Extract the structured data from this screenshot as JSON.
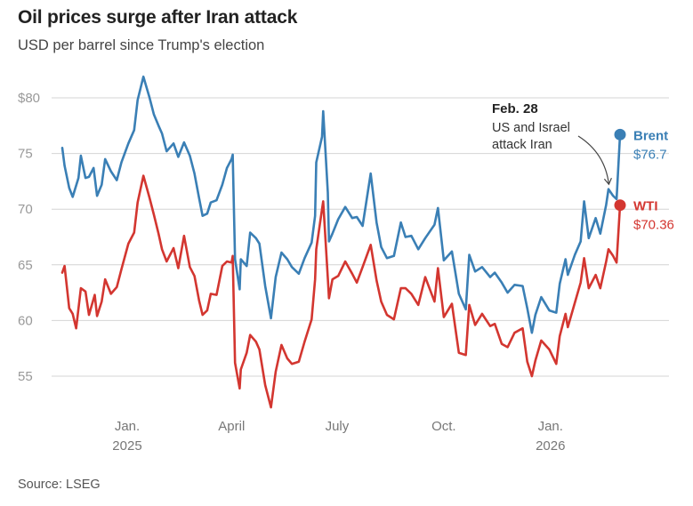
{
  "title": "Oil prices surge after Iran attack",
  "subtitle": "USD per barrel since Trump's election",
  "source": "Source: LSEG",
  "colors": {
    "brent": "#3a7fb5",
    "wti": "#d33630",
    "grid": "#d4d4d4"
  },
  "chart_data": {
    "type": "line",
    "title": "Oil prices surge after Iran attack",
    "subtitle": "USD per barrel since Trump's election",
    "xlabel": "",
    "ylabel": "",
    "ylim": [
      52,
      82
    ],
    "grid": true,
    "y_ticks": [
      "$80",
      "75",
      "70",
      "65",
      "60",
      "55"
    ],
    "x_ticks": [
      {
        "label": "Jan.",
        "sublabel": "2025",
        "date": "2025-01-01"
      },
      {
        "label": "April",
        "sublabel": "",
        "date": "2025-04-01"
      },
      {
        "label": "July",
        "sublabel": "",
        "date": "2025-07-01"
      },
      {
        "label": "Oct.",
        "sublabel": "",
        "date": "2025-10-01"
      },
      {
        "label": "Jan.",
        "sublabel": "2026",
        "date": "2026-01-01"
      }
    ],
    "annotation": {
      "date": "2026-02-28",
      "title": "Feb. 28",
      "lines": [
        "US and Israel",
        "attack Iran"
      ]
    },
    "series": [
      {
        "name": "Brent",
        "end_label": "$76.7",
        "points": [
          [
            "2024-11-06",
            75.5
          ],
          [
            "2024-11-08",
            73.9
          ],
          [
            "2024-11-12",
            71.9
          ],
          [
            "2024-11-15",
            71.1
          ],
          [
            "2024-11-20",
            72.8
          ],
          [
            "2024-11-22",
            74.8
          ],
          [
            "2024-11-26",
            72.8
          ],
          [
            "2024-11-29",
            72.9
          ],
          [
            "2024-12-03",
            73.7
          ],
          [
            "2024-12-06",
            71.2
          ],
          [
            "2024-12-10",
            72.2
          ],
          [
            "2024-12-13",
            74.5
          ],
          [
            "2024-12-18",
            73.4
          ],
          [
            "2024-12-23",
            72.6
          ],
          [
            "2024-12-27",
            74.2
          ],
          [
            "2025-01-02",
            75.9
          ],
          [
            "2025-01-07",
            77.1
          ],
          [
            "2025-01-10",
            79.8
          ],
          [
            "2025-01-15",
            81.9
          ],
          [
            "2025-01-20",
            80.1
          ],
          [
            "2025-01-24",
            78.5
          ],
          [
            "2025-01-28",
            77.5
          ],
          [
            "2025-01-31",
            76.8
          ],
          [
            "2025-02-04",
            75.2
          ],
          [
            "2025-02-10",
            75.9
          ],
          [
            "2025-02-14",
            74.7
          ],
          [
            "2025-02-19",
            76.0
          ],
          [
            "2025-02-24",
            74.8
          ],
          [
            "2025-02-28",
            73.2
          ],
          [
            "2025-03-04",
            71.0
          ],
          [
            "2025-03-07",
            69.4
          ],
          [
            "2025-03-11",
            69.6
          ],
          [
            "2025-03-14",
            70.6
          ],
          [
            "2025-03-19",
            70.8
          ],
          [
            "2025-03-24",
            72.2
          ],
          [
            "2025-03-28",
            73.7
          ],
          [
            "2025-04-01",
            74.5
          ],
          [
            "2025-04-02",
            74.9
          ],
          [
            "2025-04-04",
            65.5
          ],
          [
            "2025-04-08",
            62.8
          ],
          [
            "2025-04-09",
            65.5
          ],
          [
            "2025-04-14",
            64.9
          ],
          [
            "2025-04-17",
            67.9
          ],
          [
            "2025-04-22",
            67.4
          ],
          [
            "2025-04-25",
            66.9
          ],
          [
            "2025-04-30",
            63.1
          ],
          [
            "2025-05-05",
            60.2
          ],
          [
            "2025-05-09",
            63.9
          ],
          [
            "2025-05-14",
            66.1
          ],
          [
            "2025-05-19",
            65.5
          ],
          [
            "2025-05-23",
            64.8
          ],
          [
            "2025-05-29",
            64.2
          ],
          [
            "2025-06-03",
            65.6
          ],
          [
            "2025-06-09",
            67.0
          ],
          [
            "2025-06-12",
            69.4
          ],
          [
            "2025-06-13",
            74.2
          ],
          [
            "2025-06-18",
            76.5
          ],
          [
            "2025-06-19",
            78.8
          ],
          [
            "2025-06-23",
            71.5
          ],
          [
            "2025-06-24",
            67.1
          ],
          [
            "2025-06-27",
            67.8
          ],
          [
            "2025-07-02",
            69.1
          ],
          [
            "2025-07-08",
            70.2
          ],
          [
            "2025-07-14",
            69.2
          ],
          [
            "2025-07-18",
            69.3
          ],
          [
            "2025-07-23",
            68.5
          ],
          [
            "2025-07-30",
            73.2
          ],
          [
            "2025-08-04",
            68.8
          ],
          [
            "2025-08-08",
            66.6
          ],
          [
            "2025-08-13",
            65.6
          ],
          [
            "2025-08-19",
            65.8
          ],
          [
            "2025-08-25",
            68.8
          ],
          [
            "2025-08-29",
            67.5
          ],
          [
            "2025-09-03",
            67.6
          ],
          [
            "2025-09-09",
            66.4
          ],
          [
            "2025-09-15",
            67.4
          ],
          [
            "2025-09-23",
            68.6
          ],
          [
            "2025-09-26",
            70.1
          ],
          [
            "2025-10-01",
            65.4
          ],
          [
            "2025-10-08",
            66.2
          ],
          [
            "2025-10-14",
            62.4
          ],
          [
            "2025-10-20",
            61.0
          ],
          [
            "2025-10-23",
            65.9
          ],
          [
            "2025-10-28",
            64.4
          ],
          [
            "2025-11-03",
            64.8
          ],
          [
            "2025-11-10",
            63.9
          ],
          [
            "2025-11-14",
            64.3
          ],
          [
            "2025-11-20",
            63.4
          ],
          [
            "2025-11-25",
            62.5
          ],
          [
            "2025-12-01",
            63.2
          ],
          [
            "2025-12-08",
            63.1
          ],
          [
            "2025-12-12",
            61.1
          ],
          [
            "2025-12-16",
            58.9
          ],
          [
            "2025-12-19",
            60.5
          ],
          [
            "2025-12-24",
            62.1
          ],
          [
            "2025-12-31",
            60.9
          ],
          [
            "2026-01-06",
            60.7
          ],
          [
            "2026-01-09",
            63.3
          ],
          [
            "2026-01-14",
            65.5
          ],
          [
            "2026-01-16",
            64.1
          ],
          [
            "2026-01-22",
            65.9
          ],
          [
            "2026-01-27",
            67.1
          ],
          [
            "2026-01-30",
            70.7
          ],
          [
            "2026-02-03",
            67.4
          ],
          [
            "2026-02-09",
            69.2
          ],
          [
            "2026-02-13",
            67.8
          ],
          [
            "2026-02-18",
            70.4
          ],
          [
            "2026-02-20",
            71.8
          ],
          [
            "2026-02-24",
            71.2
          ],
          [
            "2026-02-27",
            70.9
          ],
          [
            "2026-03-02",
            76.7
          ]
        ]
      },
      {
        "name": "WTI",
        "end_label": "$70.36",
        "points": [
          [
            "2024-11-06",
            64.3
          ],
          [
            "2024-11-08",
            64.9
          ],
          [
            "2024-11-12",
            61.1
          ],
          [
            "2024-11-15",
            60.6
          ],
          [
            "2024-11-18",
            59.3
          ],
          [
            "2024-11-22",
            62.9
          ],
          [
            "2024-11-26",
            62.6
          ],
          [
            "2024-11-29",
            60.5
          ],
          [
            "2024-12-04",
            62.3
          ],
          [
            "2024-12-06",
            60.4
          ],
          [
            "2024-12-10",
            61.7
          ],
          [
            "2024-12-13",
            63.7
          ],
          [
            "2024-12-18",
            62.4
          ],
          [
            "2024-12-23",
            63.0
          ],
          [
            "2024-12-27",
            64.6
          ],
          [
            "2025-01-02",
            66.9
          ],
          [
            "2025-01-07",
            67.9
          ],
          [
            "2025-01-10",
            70.6
          ],
          [
            "2025-01-15",
            73.0
          ],
          [
            "2025-01-20",
            71.1
          ],
          [
            "2025-01-24",
            69.5
          ],
          [
            "2025-01-28",
            67.8
          ],
          [
            "2025-01-31",
            66.4
          ],
          [
            "2025-02-04",
            65.3
          ],
          [
            "2025-02-10",
            66.5
          ],
          [
            "2025-02-14",
            64.7
          ],
          [
            "2025-02-19",
            67.6
          ],
          [
            "2025-02-24",
            64.8
          ],
          [
            "2025-02-28",
            64.0
          ],
          [
            "2025-03-04",
            61.8
          ],
          [
            "2025-03-07",
            60.5
          ],
          [
            "2025-03-11",
            60.9
          ],
          [
            "2025-03-14",
            62.4
          ],
          [
            "2025-03-19",
            62.3
          ],
          [
            "2025-03-24",
            64.9
          ],
          [
            "2025-03-28",
            65.3
          ],
          [
            "2025-04-01",
            65.2
          ],
          [
            "2025-04-02",
            65.8
          ],
          [
            "2025-04-04",
            56.2
          ],
          [
            "2025-04-08",
            53.9
          ],
          [
            "2025-04-09",
            55.6
          ],
          [
            "2025-04-14",
            57.1
          ],
          [
            "2025-04-17",
            58.7
          ],
          [
            "2025-04-22",
            58.1
          ],
          [
            "2025-04-25",
            57.4
          ],
          [
            "2025-04-30",
            54.2
          ],
          [
            "2025-05-05",
            52.2
          ],
          [
            "2025-05-09",
            55.4
          ],
          [
            "2025-05-14",
            57.8
          ],
          [
            "2025-05-19",
            56.6
          ],
          [
            "2025-05-23",
            56.1
          ],
          [
            "2025-05-29",
            56.3
          ],
          [
            "2025-06-03",
            58.1
          ],
          [
            "2025-06-09",
            60.1
          ],
          [
            "2025-06-12",
            63.7
          ],
          [
            "2025-06-13",
            66.4
          ],
          [
            "2025-06-18",
            70.0
          ],
          [
            "2025-06-19",
            70.7
          ],
          [
            "2025-06-23",
            63.8
          ],
          [
            "2025-06-24",
            62.0
          ],
          [
            "2025-06-27",
            63.7
          ],
          [
            "2025-07-02",
            64.0
          ],
          [
            "2025-07-08",
            65.3
          ],
          [
            "2025-07-14",
            64.2
          ],
          [
            "2025-07-18",
            63.4
          ],
          [
            "2025-07-23",
            64.8
          ],
          [
            "2025-07-30",
            66.8
          ],
          [
            "2025-08-04",
            63.6
          ],
          [
            "2025-08-08",
            61.7
          ],
          [
            "2025-08-13",
            60.5
          ],
          [
            "2025-08-19",
            60.1
          ],
          [
            "2025-08-25",
            62.9
          ],
          [
            "2025-08-29",
            62.9
          ],
          [
            "2025-09-03",
            62.4
          ],
          [
            "2025-09-09",
            61.4
          ],
          [
            "2025-09-15",
            63.9
          ],
          [
            "2025-09-23",
            61.7
          ],
          [
            "2025-09-26",
            64.7
          ],
          [
            "2025-10-01",
            60.3
          ],
          [
            "2025-10-08",
            61.5
          ],
          [
            "2025-10-14",
            57.1
          ],
          [
            "2025-10-20",
            56.9
          ],
          [
            "2025-10-23",
            61.4
          ],
          [
            "2025-10-28",
            59.6
          ],
          [
            "2025-11-03",
            60.6
          ],
          [
            "2025-11-10",
            59.5
          ],
          [
            "2025-11-14",
            59.7
          ],
          [
            "2025-11-20",
            57.9
          ],
          [
            "2025-11-25",
            57.6
          ],
          [
            "2025-12-01",
            58.9
          ],
          [
            "2025-12-08",
            59.3
          ],
          [
            "2025-12-12",
            56.3
          ],
          [
            "2025-12-16",
            55.0
          ],
          [
            "2025-12-19",
            56.4
          ],
          [
            "2025-12-24",
            58.2
          ],
          [
            "2025-12-31",
            57.4
          ],
          [
            "2026-01-06",
            56.1
          ],
          [
            "2026-01-09",
            58.6
          ],
          [
            "2026-01-14",
            60.6
          ],
          [
            "2026-01-16",
            59.4
          ],
          [
            "2026-01-22",
            61.6
          ],
          [
            "2026-01-27",
            63.4
          ],
          [
            "2026-01-30",
            65.6
          ],
          [
            "2026-02-03",
            62.9
          ],
          [
            "2026-02-09",
            64.1
          ],
          [
            "2026-02-13",
            62.9
          ],
          [
            "2026-02-18",
            65.3
          ],
          [
            "2026-02-20",
            66.4
          ],
          [
            "2026-02-24",
            65.8
          ],
          [
            "2026-02-27",
            65.2
          ],
          [
            "2026-03-02",
            70.36
          ]
        ]
      }
    ]
  }
}
